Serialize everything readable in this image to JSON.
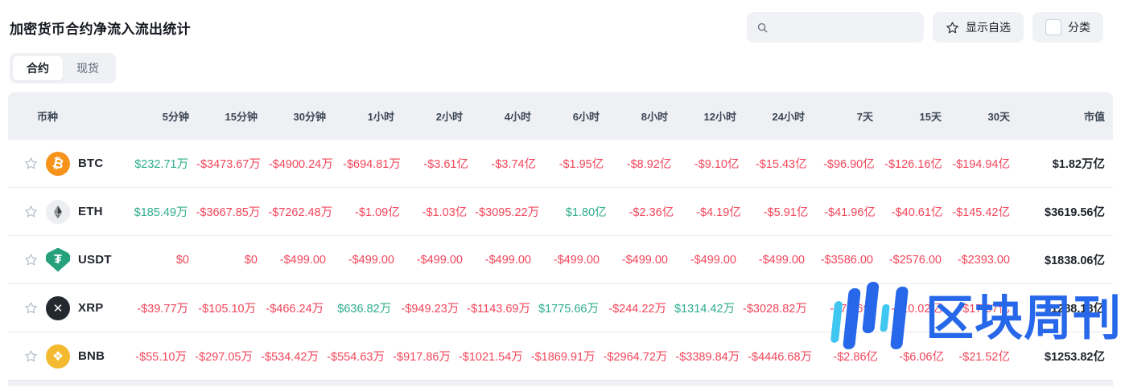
{
  "page": {
    "title": "加密货币合约净流入流出统计"
  },
  "toolbar": {
    "search_placeholder": "",
    "search_value": "",
    "show_favorites_label": "显示自选",
    "category_label": "分类"
  },
  "tabs": [
    {
      "label": "合约",
      "active": true
    },
    {
      "label": "现货",
      "active": false
    }
  ],
  "colors": {
    "positive": "#2fae8c",
    "negative": "#f2465a",
    "watermark_blue": "#2767e9",
    "watermark_cyan": "#3fc6f1",
    "btc_orange": "#f7931a",
    "usdt_teal": "#26a17b",
    "bnb_yellow": "#f3ba2f"
  },
  "watermark": {
    "text": "区块周刊",
    "logo_icon": "bar-chart-logo-icon"
  },
  "table": {
    "columns": [
      "币种",
      "5分钟",
      "15分钟",
      "30分钟",
      "1小时",
      "2小时",
      "4小时",
      "6小时",
      "8小时",
      "12小时",
      "24小时",
      "7天",
      "15天",
      "30天",
      "市值"
    ],
    "rows": [
      {
        "symbol": "BTC",
        "icon_name": "btc-coin-icon",
        "favorited": false,
        "cells": [
          {
            "t": "$232.71万",
            "c": "up"
          },
          {
            "t": "-$3473.67万",
            "c": "down"
          },
          {
            "t": "-$4900.24万",
            "c": "down"
          },
          {
            "t": "-$694.81万",
            "c": "down"
          },
          {
            "t": "-$3.61亿",
            "c": "down"
          },
          {
            "t": "-$3.74亿",
            "c": "down"
          },
          {
            "t": "-$1.95亿",
            "c": "down"
          },
          {
            "t": "-$8.92亿",
            "c": "down"
          },
          {
            "t": "-$9.10亿",
            "c": "down"
          },
          {
            "t": "-$15.43亿",
            "c": "down"
          },
          {
            "t": "-$96.90亿",
            "c": "down"
          },
          {
            "t": "-$126.16亿",
            "c": "down"
          },
          {
            "t": "-$194.94亿",
            "c": "down"
          },
          {
            "t": "$1.82万亿",
            "c": "cap"
          }
        ]
      },
      {
        "symbol": "ETH",
        "icon_name": "eth-coin-icon",
        "favorited": false,
        "cells": [
          {
            "t": "$185.49万",
            "c": "up"
          },
          {
            "t": "-$3667.85万",
            "c": "down"
          },
          {
            "t": "-$7262.48万",
            "c": "down"
          },
          {
            "t": "-$1.09亿",
            "c": "down"
          },
          {
            "t": "-$1.03亿",
            "c": "down"
          },
          {
            "t": "-$3095.22万",
            "c": "down"
          },
          {
            "t": "$1.80亿",
            "c": "up"
          },
          {
            "t": "-$2.36亿",
            "c": "down"
          },
          {
            "t": "-$4.19亿",
            "c": "down"
          },
          {
            "t": "-$5.91亿",
            "c": "down"
          },
          {
            "t": "-$41.96亿",
            "c": "down"
          },
          {
            "t": "-$40.61亿",
            "c": "down"
          },
          {
            "t": "-$145.42亿",
            "c": "down"
          },
          {
            "t": "$3619.56亿",
            "c": "cap"
          }
        ]
      },
      {
        "symbol": "USDT",
        "icon_name": "usdt-coin-icon",
        "favorited": false,
        "cells": [
          {
            "t": "$0",
            "c": "down"
          },
          {
            "t": "$0",
            "c": "down"
          },
          {
            "t": "-$499.00",
            "c": "down"
          },
          {
            "t": "-$499.00",
            "c": "down"
          },
          {
            "t": "-$499.00",
            "c": "down"
          },
          {
            "t": "-$499.00",
            "c": "down"
          },
          {
            "t": "-$499.00",
            "c": "down"
          },
          {
            "t": "-$499.00",
            "c": "down"
          },
          {
            "t": "-$499.00",
            "c": "down"
          },
          {
            "t": "-$499.00",
            "c": "down"
          },
          {
            "t": "-$3586.00",
            "c": "down"
          },
          {
            "t": "-$2576.00",
            "c": "down"
          },
          {
            "t": "-$2393.00",
            "c": "down"
          },
          {
            "t": "$1838.06亿",
            "c": "cap"
          }
        ]
      },
      {
        "symbol": "XRP",
        "icon_name": "xrp-coin-icon",
        "favorited": false,
        "cells": [
          {
            "t": "-$39.77万",
            "c": "down"
          },
          {
            "t": "-$105.10万",
            "c": "down"
          },
          {
            "t": "-$466.24万",
            "c": "down"
          },
          {
            "t": "$636.82万",
            "c": "up"
          },
          {
            "t": "-$949.23万",
            "c": "down"
          },
          {
            "t": "-$1143.69万",
            "c": "down"
          },
          {
            "t": "$1775.66万",
            "c": "up"
          },
          {
            "t": "-$244.22万",
            "c": "down"
          },
          {
            "t": "$1314.42万",
            "c": "up"
          },
          {
            "t": "-$3028.82万",
            "c": "down"
          },
          {
            "t": "-$7.16亿",
            "c": "down"
          },
          {
            "t": "-$10.02亿",
            "c": "down"
          },
          {
            "t": "-$17.07亿",
            "c": "down"
          },
          {
            "t": "$1288.18亿",
            "c": "cap"
          }
        ]
      },
      {
        "symbol": "BNB",
        "icon_name": "bnb-coin-icon",
        "favorited": false,
        "cells": [
          {
            "t": "-$55.10万",
            "c": "down"
          },
          {
            "t": "-$297.05万",
            "c": "down"
          },
          {
            "t": "-$534.42万",
            "c": "down"
          },
          {
            "t": "-$554.63万",
            "c": "down"
          },
          {
            "t": "-$917.86万",
            "c": "down"
          },
          {
            "t": "-$1021.54万",
            "c": "down"
          },
          {
            "t": "-$1869.91万",
            "c": "down"
          },
          {
            "t": "-$2964.72万",
            "c": "down"
          },
          {
            "t": "-$3389.84万",
            "c": "down"
          },
          {
            "t": "-$4446.68万",
            "c": "down"
          },
          {
            "t": "-$2.86亿",
            "c": "down"
          },
          {
            "t": "-$6.06亿",
            "c": "down"
          },
          {
            "t": "-$21.52亿",
            "c": "down"
          },
          {
            "t": "$1253.82亿",
            "c": "cap"
          }
        ]
      }
    ]
  }
}
